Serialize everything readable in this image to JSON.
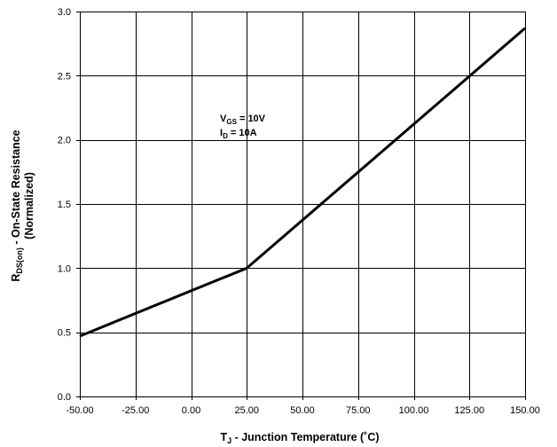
{
  "chart_data": {
    "type": "line",
    "title": "",
    "xlabel": {
      "main": "T",
      "sub": "J",
      "rest": " - Junction Temperature (˚C)"
    },
    "ylabel": {
      "main": "R",
      "sub": "DS(on)",
      "rest": " - On-State Resistance",
      "line2": "(Normalized)"
    },
    "xlim": [
      -50,
      150
    ],
    "ylim": [
      0,
      3
    ],
    "x_ticks": [
      -50,
      -25,
      0,
      25,
      50,
      75,
      100,
      125,
      150
    ],
    "x_tick_labels": [
      "-50.00",
      "-25.00",
      "0.00",
      "25.00",
      "50.00",
      "75.00",
      "100.00",
      "125.00",
      "150.00"
    ],
    "y_ticks": [
      0,
      0.5,
      1,
      1.5,
      2,
      2.5,
      3
    ],
    "y_tick_labels": [
      "0.0",
      "0.5",
      "1.0",
      "1.5",
      "2.0",
      "2.5",
      "3.0"
    ],
    "grid": true,
    "series": [
      {
        "x": [
          -50,
          25,
          150
        ],
        "y": [
          0.47,
          1.0,
          2.87
        ]
      }
    ],
    "annotations": [
      {
        "main": "V",
        "sub": "GS",
        "rest": " = 10V"
      },
      {
        "main": "I",
        "sub": "D",
        "rest": " = 10A"
      }
    ]
  }
}
